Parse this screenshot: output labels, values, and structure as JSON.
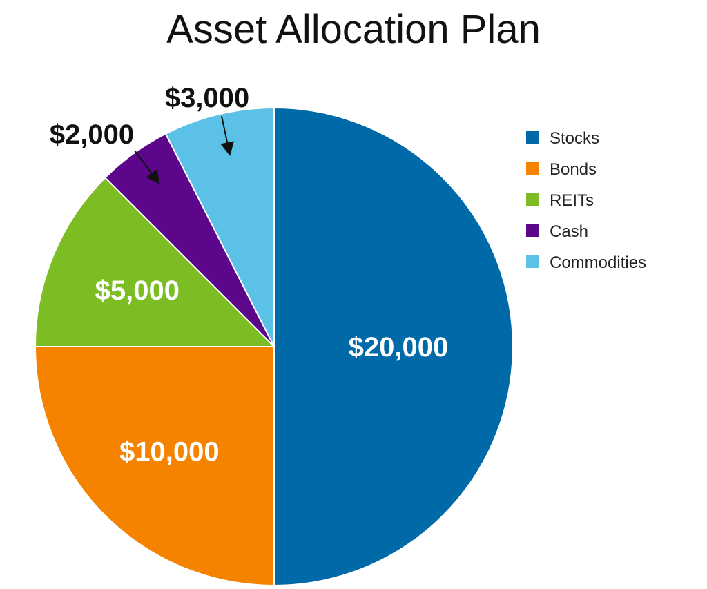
{
  "chart_data": {
    "type": "pie",
    "title": "Asset Allocation Plan",
    "start_angle_deg": 0,
    "direction": "clockwise",
    "legend_position": "right",
    "slices": [
      {
        "name": "Stocks",
        "value": 20000,
        "label": "$20,000",
        "color": "#0069A8",
        "label_style": "inside"
      },
      {
        "name": "Bonds",
        "value": 10000,
        "label": "$10,000",
        "color": "#F58300",
        "label_style": "inside"
      },
      {
        "name": "REITs",
        "value": 5000,
        "label": "$5,000",
        "color": "#7BBD22",
        "label_style": "inside"
      },
      {
        "name": "Cash",
        "value": 2000,
        "label": "$2,000",
        "color": "#5C068C",
        "label_style": "callout"
      },
      {
        "name": "Commodities",
        "value": 3000,
        "label": "$3,000",
        "color": "#5BC1E6",
        "label_style": "callout"
      }
    ]
  }
}
